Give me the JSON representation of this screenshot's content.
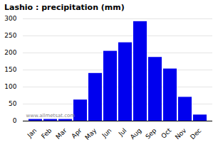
{
  "chart_data": {
    "type": "bar",
    "title": "Lashio : precipitation (mm)",
    "categories": [
      "Jan",
      "Feb",
      "Mar",
      "Apr",
      "May",
      "Jun",
      "Jul",
      "Aug",
      "Sep",
      "Oct",
      "Nov",
      "Dec"
    ],
    "values": [
      5,
      5,
      5,
      62,
      140,
      205,
      230,
      292,
      187,
      153,
      70,
      18
    ],
    "color": "#0000EE",
    "ylim": [
      0,
      300
    ],
    "yticks": [
      0,
      50,
      100,
      150,
      200,
      250,
      300
    ],
    "grid": true,
    "annotations": [
      "www.allmetsat.com"
    ]
  }
}
